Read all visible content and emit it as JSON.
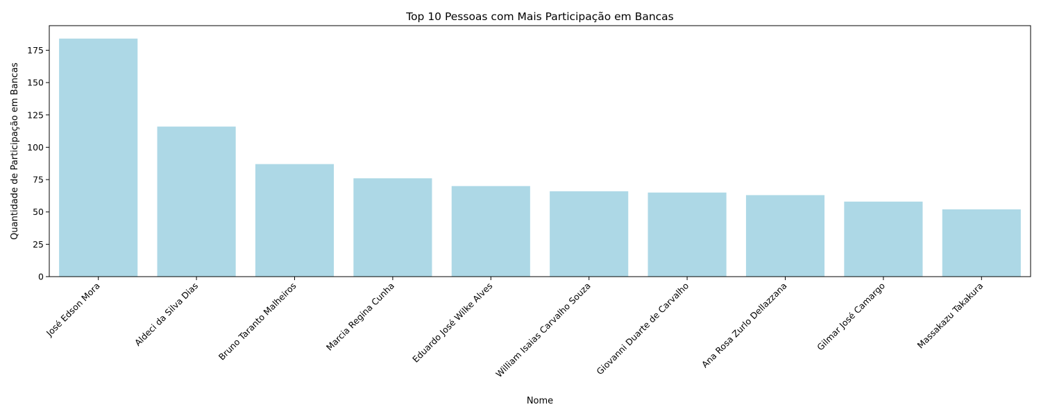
{
  "chart_data": {
    "type": "bar",
    "title": "Top 10 Pessoas com Mais Participação em Bancas",
    "xlabel": "Nome",
    "ylabel": "Quantidade de Participação em Bancas",
    "categories": [
      "José Edson Mora",
      "Aldeci da Silva Dias",
      "Bruno Taranto Malheiros",
      "Marcia Regina Cunha",
      "Eduardo José Wilke Alves",
      "William Isaias Carvalho Souza",
      "Giovanni Duarte de Carvalho",
      "Ana Rosa Zurlo Dellazzana",
      "Gilmar José Camargo",
      "Massakazu Takakura"
    ],
    "values": [
      184,
      116,
      87,
      76,
      70,
      66,
      65,
      63,
      58,
      52
    ],
    "ylim": [
      0,
      194
    ],
    "yticks": [
      0,
      25,
      50,
      75,
      100,
      125,
      150,
      175
    ],
    "grid": false,
    "bar_color": "#add8e6"
  }
}
